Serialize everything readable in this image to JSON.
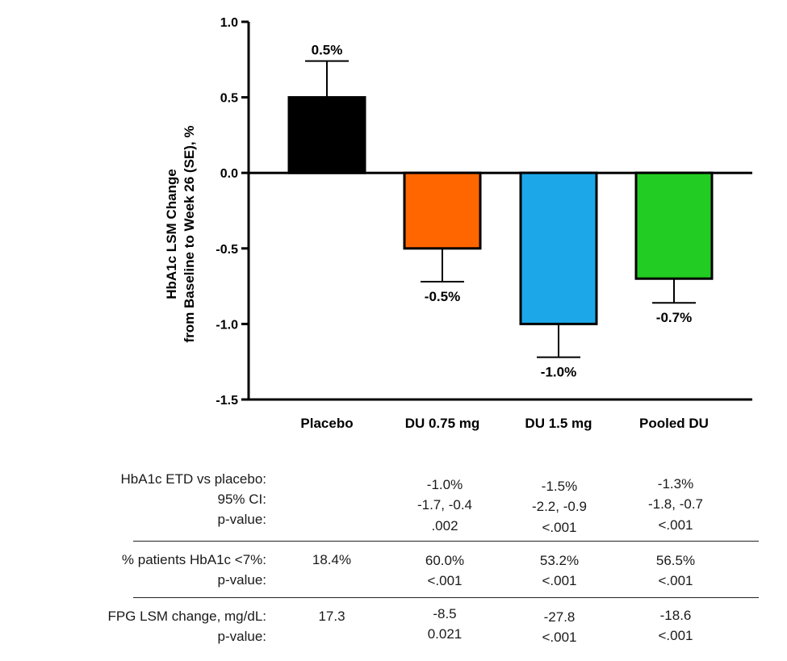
{
  "chart_data": {
    "type": "bar",
    "ylabel_line1": "HbA1c LSM Change",
    "ylabel_line2": "from Baseline to Week 26 (SE), %",
    "ylim": [
      -1.5,
      1.0
    ],
    "yticks": [
      1.0,
      0.5,
      0.0,
      -0.5,
      -1.0,
      -1.5
    ],
    "ytick_labels": [
      "1.0",
      "0.5",
      "0.0",
      "-0.5",
      "-1.0",
      "-1.5"
    ],
    "categories": [
      "Placebo",
      "DU 0.75 mg",
      "DU 1.5 mg",
      "Pooled DU"
    ],
    "values": [
      0.5,
      -0.5,
      -1.0,
      -0.7
    ],
    "errors": [
      0.24,
      0.22,
      0.22,
      0.16
    ],
    "data_labels": [
      "0.5%",
      "-0.5%",
      "-1.0%",
      "-0.7%"
    ],
    "colors": [
      "#000000",
      "#ff6600",
      "#1ca8e8",
      "#22cc22"
    ]
  },
  "table": {
    "etd": {
      "labels": [
        "HbA1c ETD vs placebo:",
        "95% CI:",
        "p-value:"
      ],
      "cols": [
        {
          "lines": [
            "",
            "",
            ""
          ]
        },
        {
          "lines": [
            "-1.0%",
            "-1.7, -0.4",
            ".002"
          ]
        },
        {
          "lines": [
            "-1.5%",
            "-2.2, -0.9",
            "<.001"
          ]
        },
        {
          "lines": [
            "-1.3%",
            "-1.8, -0.7",
            "<.001"
          ]
        }
      ]
    },
    "patients": {
      "labels": [
        "% patients HbA1c <7%:",
        "p-value:"
      ],
      "cols": [
        {
          "lines": [
            "18.4%",
            ""
          ]
        },
        {
          "lines": [
            "60.0%",
            "<.001"
          ]
        },
        {
          "lines": [
            "53.2%",
            "<.001"
          ]
        },
        {
          "lines": [
            "56.5%",
            "<.001"
          ]
        }
      ]
    },
    "fpg": {
      "labels": [
        "FPG LSM change, mg/dL:",
        "p-value:"
      ],
      "cols": [
        {
          "lines": [
            "17.3",
            ""
          ]
        },
        {
          "lines": [
            "-8.5",
            "0.021"
          ]
        },
        {
          "lines": [
            "-27.8",
            "<.001"
          ]
        },
        {
          "lines": [
            "-18.6",
            "<.001"
          ]
        }
      ]
    }
  }
}
